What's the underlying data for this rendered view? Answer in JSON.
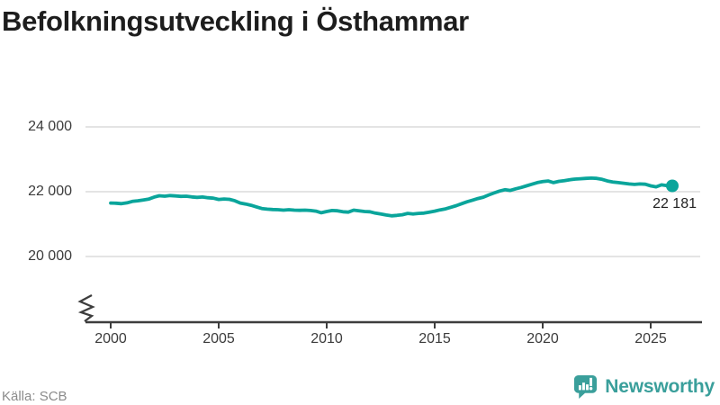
{
  "title": "Befolkningsutveckling i Östhammar",
  "source": "Källa: SCB",
  "brand": {
    "name": "Newsworthy",
    "icon": "newsworthy-barchart-bubble-icon"
  },
  "colors": {
    "line": "#0aa59b",
    "grid": "#dcdcdc",
    "axis": "#3d3d3d",
    "title": "#1d1d1d",
    "tick_text": "#3c3c3c",
    "label_text": "#222222",
    "source_text": "#8b8b8b",
    "brand": "#3a9f9b"
  },
  "chart_data": {
    "type": "line",
    "title": "Befolkningsutveckling i Östhammar",
    "xlabel": "",
    "ylabel": "",
    "grid": "horizontal",
    "legend": "none",
    "axis_break_bottom_left": true,
    "x_start": 2000,
    "x_step": 0.25,
    "x_end": 2026,
    "xlim": [
      1999.5,
      2027.5
    ],
    "ylim_shown": [
      20000,
      24000
    ],
    "xtick_labels": [
      "2000",
      "2005",
      "2010",
      "2015",
      "2020",
      "2025"
    ],
    "xtick_years": [
      2000,
      2005,
      2010,
      2015,
      2020,
      2025
    ],
    "ytick_labels": [
      "24 000",
      "22 000",
      "20 000"
    ],
    "ytick_values": [
      24000,
      22000,
      20000
    ],
    "series_name": "Befolkning",
    "values": [
      21650,
      21645,
      21630,
      21655,
      21700,
      21720,
      21745,
      21770,
      21830,
      21875,
      21860,
      21880,
      21870,
      21855,
      21860,
      21840,
      21825,
      21835,
      21815,
      21800,
      21760,
      21775,
      21765,
      21720,
      21650,
      21620,
      21580,
      21530,
      21480,
      21460,
      21450,
      21445,
      21430,
      21445,
      21430,
      21425,
      21430,
      21420,
      21400,
      21350,
      21390,
      21420,
      21410,
      21380,
      21370,
      21430,
      21410,
      21390,
      21380,
      21340,
      21310,
      21280,
      21255,
      21270,
      21290,
      21330,
      21310,
      21330,
      21340,
      21370,
      21400,
      21440,
      21470,
      21520,
      21570,
      21630,
      21690,
      21740,
      21790,
      21830,
      21900,
      21960,
      22020,
      22060,
      22040,
      22090,
      22130,
      22180,
      22230,
      22280,
      22310,
      22330,
      22280,
      22320,
      22340,
      22370,
      22390,
      22400,
      22410,
      22420,
      22410,
      22380,
      22330,
      22300,
      22280,
      22260,
      22240,
      22225,
      22240,
      22230,
      22180,
      22150,
      22210,
      22190,
      22181
    ],
    "last_point": {
      "x": 2026,
      "value": 22181,
      "label": "22 181"
    }
  }
}
